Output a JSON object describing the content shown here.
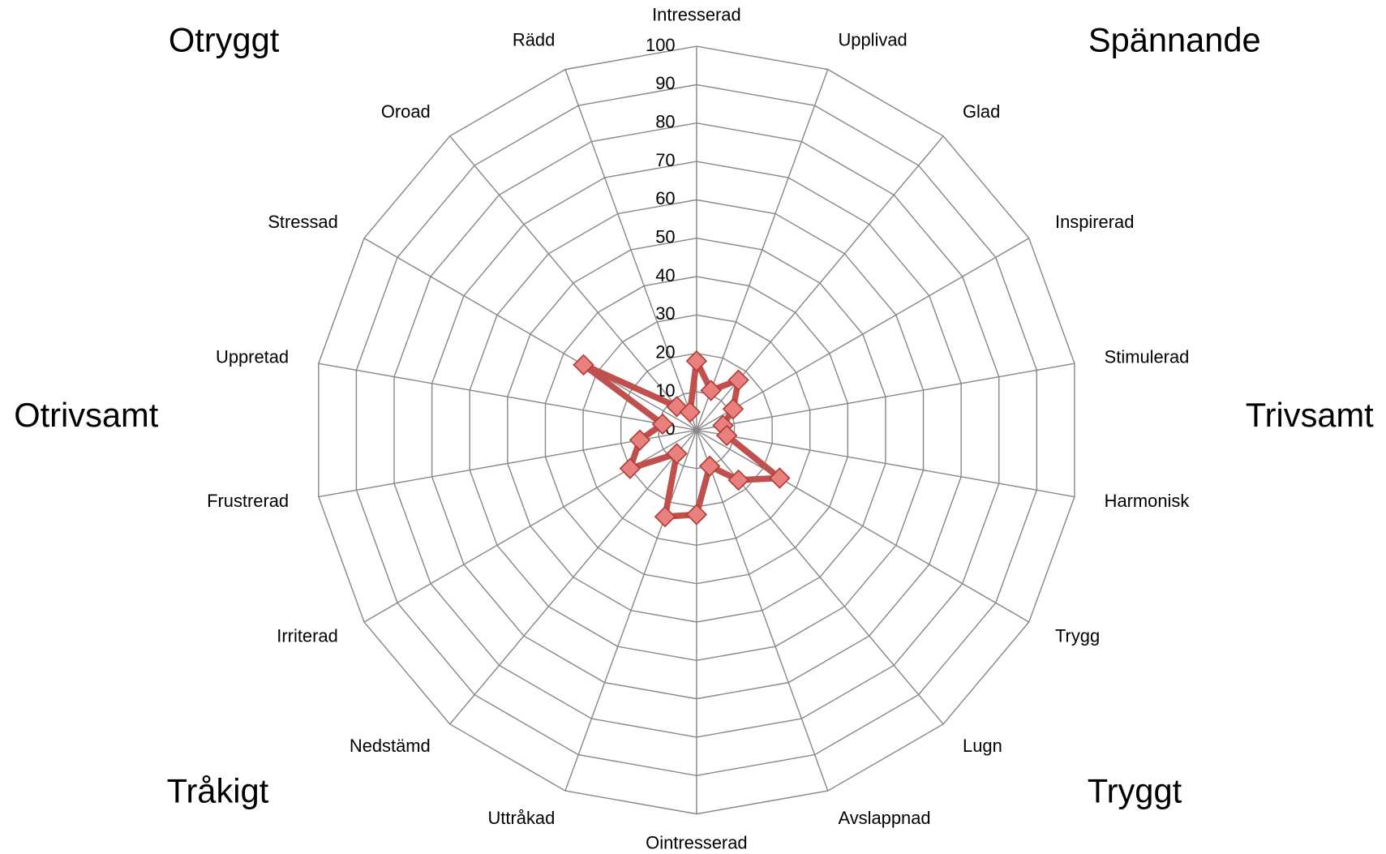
{
  "chart_data": {
    "type": "radar",
    "categories": [
      "Intresserad",
      "Upplivad",
      "Glad",
      "Inspirerad",
      "Stimulerad",
      "Harmonisk",
      "Trygg",
      "Lugn",
      "Avslappnad",
      "Ointresserad",
      "Uttråkad",
      "Nedstämd",
      "Irriterad",
      "Frustrerad",
      "Uppretad",
      "Stressad",
      "Oroad",
      "Rädd"
    ],
    "values": [
      18,
      11,
      17,
      11,
      7,
      8,
      25,
      17,
      10,
      22,
      24,
      8,
      20,
      15,
      9,
      34,
      8,
      5
    ],
    "color": "#c0504d",
    "rlim": [
      0,
      100
    ],
    "rticks": [
      0,
      10,
      20,
      30,
      40,
      50,
      60,
      70,
      80,
      90,
      100
    ],
    "grid": true,
    "annotations": [
      "Otryggt",
      "Spännande",
      "Otrivsamt",
      "Trivsamt",
      "Tråkigt",
      "Tryggt"
    ]
  }
}
